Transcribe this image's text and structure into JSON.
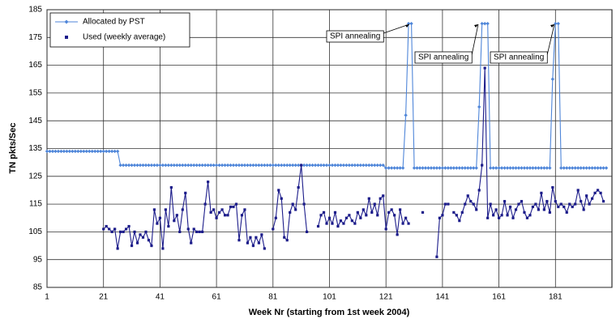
{
  "chart_data": {
    "type": "line",
    "x_label": "Week Nr (starting from 1st week 2004)",
    "y_label": "TN pkts/Sec",
    "x": [
      1,
      2,
      3,
      4,
      5,
      6,
      7,
      8,
      9,
      10,
      11,
      12,
      13,
      14,
      15,
      16,
      17,
      18,
      19,
      20,
      21,
      22,
      23,
      24,
      25,
      26,
      27,
      28,
      29,
      30,
      31,
      32,
      33,
      34,
      35,
      36,
      37,
      38,
      39,
      40,
      41,
      42,
      43,
      44,
      45,
      46,
      47,
      48,
      49,
      50,
      51,
      52,
      53,
      54,
      55,
      56,
      57,
      58,
      59,
      60,
      61,
      62,
      63,
      64,
      65,
      66,
      67,
      68,
      69,
      70,
      71,
      72,
      73,
      74,
      75,
      76,
      77,
      78,
      79,
      80,
      81,
      82,
      83,
      84,
      85,
      86,
      87,
      88,
      89,
      90,
      91,
      92,
      93,
      94,
      95,
      96,
      97,
      98,
      99,
      100,
      101,
      102,
      103,
      104,
      105,
      106,
      107,
      108,
      109,
      110,
      111,
      112,
      113,
      114,
      115,
      116,
      117,
      118,
      119,
      120,
      121,
      122,
      123,
      124,
      125,
      126,
      127,
      128,
      129,
      130,
      131,
      132,
      133,
      134,
      135,
      136,
      137,
      138,
      139,
      140,
      141,
      142,
      143,
      144,
      145,
      146,
      147,
      148,
      149,
      150,
      151,
      152,
      153,
      154,
      155,
      156,
      157,
      158,
      159,
      160,
      161,
      162,
      163,
      164,
      165,
      166,
      167,
      168,
      169,
      170,
      171,
      172,
      173,
      174,
      175,
      176,
      177,
      178,
      179,
      180,
      181,
      182,
      183,
      184,
      185,
      186,
      187,
      188,
      189,
      190,
      191,
      192,
      193,
      194,
      195,
      196,
      197,
      198,
      199
    ],
    "series": [
      {
        "name": "Allocated by PST",
        "color": "#4f86d9",
        "marker": "diamond",
        "values": [
          134,
          134,
          134,
          134,
          134,
          134,
          134,
          134,
          134,
          134,
          134,
          134,
          134,
          134,
          134,
          134,
          134,
          134,
          134,
          134,
          134,
          134,
          134,
          134,
          134,
          134,
          129,
          129,
          129,
          129,
          129,
          129,
          129,
          129,
          129,
          129,
          129,
          129,
          129,
          129,
          129,
          129,
          129,
          129,
          129,
          129,
          129,
          129,
          129,
          129,
          129,
          129,
          129,
          129,
          129,
          129,
          129,
          129,
          129,
          129,
          129,
          129,
          129,
          129,
          129,
          129,
          129,
          129,
          129,
          129,
          129,
          129,
          129,
          129,
          129,
          129,
          129,
          129,
          129,
          129,
          129,
          129,
          129,
          129,
          129,
          129,
          129,
          129,
          129,
          129,
          129,
          129,
          129,
          129,
          129,
          129,
          129,
          129,
          129,
          129,
          129,
          129,
          129,
          129,
          129,
          129,
          129,
          129,
          129,
          129,
          129,
          129,
          129,
          129,
          129,
          129,
          129,
          129,
          129,
          129,
          128,
          128,
          128,
          128,
          128,
          128,
          128,
          147,
          180,
          180,
          128,
          128,
          128,
          128,
          128,
          128,
          128,
          128,
          128,
          128,
          128,
          128,
          128,
          128,
          128,
          128,
          128,
          128,
          128,
          128,
          128,
          128,
          128,
          150,
          180,
          180,
          180,
          128,
          128,
          128,
          128,
          128,
          128,
          128,
          128,
          128,
          128,
          128,
          128,
          128,
          128,
          128,
          128,
          128,
          128,
          128,
          128,
          128,
          128,
          160,
          180,
          180,
          128,
          128,
          128,
          128,
          128,
          128,
          128,
          128,
          128,
          128,
          128,
          128,
          128,
          128,
          128,
          128,
          128
        ]
      },
      {
        "name": "Used (weekly average)",
        "color": "#1c1c8a",
        "marker": "square",
        "values": [
          null,
          null,
          null,
          null,
          null,
          null,
          null,
          null,
          null,
          null,
          null,
          null,
          null,
          null,
          null,
          null,
          null,
          null,
          null,
          null,
          106,
          107,
          106,
          105,
          106,
          99,
          105,
          105,
          106,
          107,
          100,
          105,
          101,
          104,
          103,
          105,
          102,
          100,
          113,
          108,
          110,
          99,
          113,
          107,
          121,
          109,
          111,
          105,
          113,
          119,
          106,
          101,
          106,
          105,
          105,
          105,
          115,
          123,
          112,
          113,
          110,
          112,
          113,
          111,
          111,
          114,
          114,
          115,
          102,
          111,
          113,
          101,
          103,
          100,
          103,
          101,
          104,
          99,
          null,
          null,
          106,
          110,
          120,
          117,
          103,
          102,
          112,
          115,
          113,
          121,
          129,
          115,
          105,
          null,
          null,
          null,
          107,
          111,
          112,
          108,
          110,
          108,
          112,
          107,
          109,
          108,
          110,
          111,
          109,
          108,
          112,
          110,
          113,
          111,
          117,
          112,
          115,
          111,
          117,
          118,
          106,
          112,
          113,
          111,
          104,
          113,
          108,
          110,
          108,
          null,
          null,
          null,
          null,
          112,
          null,
          null,
          null,
          null,
          96,
          110,
          111,
          115,
          115,
          null,
          112,
          111,
          109,
          112,
          115,
          118,
          116,
          115,
          113,
          120,
          129,
          164,
          110,
          115,
          111,
          113,
          110,
          111,
          116,
          111,
          114,
          110,
          113,
          115,
          116,
          112,
          110,
          111,
          114,
          115,
          113,
          119,
          113,
          116,
          112,
          121,
          116,
          114,
          115,
          114,
          112,
          115,
          114,
          115,
          120,
          116,
          113,
          118,
          115,
          117,
          119,
          120,
          119,
          116,
          null
        ]
      }
    ],
    "annotations": [
      "SPI annealing",
      "SPI annealing",
      "SPI annealing"
    ],
    "xlim": [
      1,
      201
    ],
    "xticks": [
      1,
      21,
      41,
      61,
      81,
      101,
      121,
      141,
      161,
      181
    ],
    "ylim": [
      85,
      185
    ],
    "yticks": [
      85,
      95,
      105,
      115,
      125,
      135,
      145,
      155,
      165,
      175,
      185
    ],
    "grid": true,
    "legend": "upper left"
  }
}
